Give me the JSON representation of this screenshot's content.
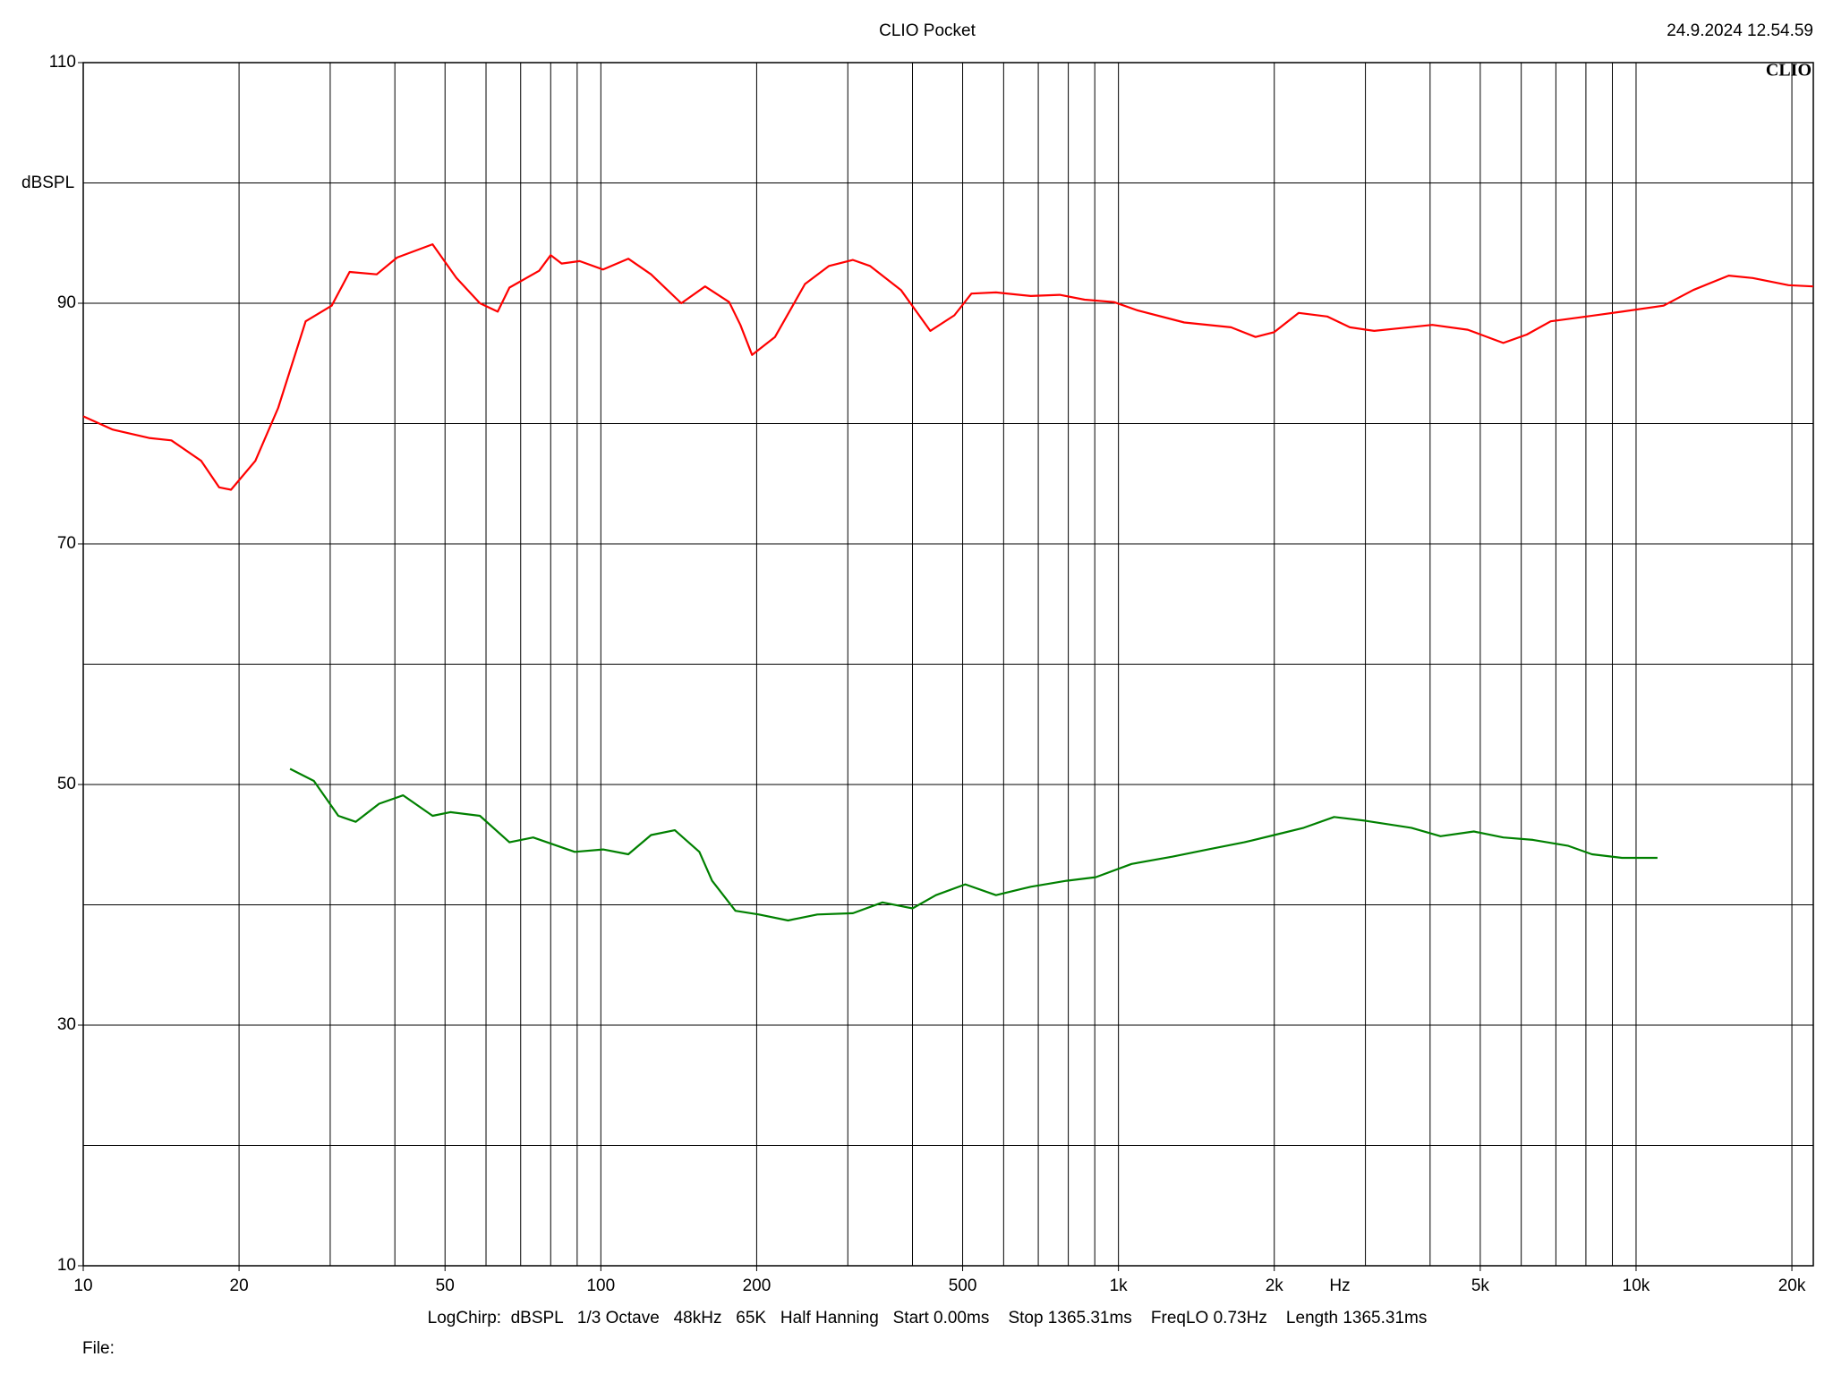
{
  "chart_data": {
    "type": "line",
    "title": "CLIO Pocket",
    "timestamp": "24.9.2024 12.54.59",
    "logo": "CLIO",
    "y_label": "dBSPL",
    "x_label": "Hz",
    "footer": "LogChirp:  dBSPL   1/3 Octave   48kHz   65K   Half Hanning   Start 0.00ms    Stop 1365.31ms    FreqLO 0.73Hz    Length 1365.31ms",
    "file_label": "File:",
    "x_log": true,
    "grid": true,
    "xlim": [
      10,
      22000
    ],
    "ylim": [
      10,
      110
    ],
    "xticks": [
      10,
      20,
      50,
      100,
      200,
      500,
      {
        "value": 1000,
        "label": "1k"
      },
      {
        "value": 2000,
        "label": "2k"
      },
      {
        "value": 5000,
        "label": "5k"
      },
      {
        "value": 10000,
        "label": "10k"
      },
      {
        "value": 20000,
        "label": "20k"
      }
    ],
    "xgrid": [
      20,
      30,
      40,
      50,
      60,
      70,
      80,
      90,
      100,
      200,
      300,
      400,
      500,
      600,
      700,
      800,
      900,
      1000,
      2000,
      3000,
      4000,
      5000,
      6000,
      7000,
      8000,
      9000,
      10000,
      20000
    ],
    "yticks": [
      10,
      30,
      50,
      70,
      90,
      110
    ],
    "ygrid": [
      20,
      30,
      40,
      50,
      60,
      70,
      80,
      90,
      100
    ],
    "series": [
      {
        "color": "#ff0000",
        "x": [
          10,
          11.4,
          13.4,
          14.8,
          16.9,
          18.3,
          19.3,
          21.5,
          23.8,
          26.9,
          30.2,
          32.7,
          36.9,
          40.4,
          47.3,
          52.6,
          58.4,
          63.2,
          66.6,
          76,
          80,
          84,
          91,
          101,
          113,
          125,
          143,
          159,
          177,
          186,
          196,
          217,
          248,
          276,
          307,
          331,
          380,
          433,
          482,
          520,
          580,
          677,
          770,
          860,
          980,
          1090,
          1340,
          1650,
          1840,
          2000,
          2230,
          2530,
          2800,
          3120,
          3460,
          4040,
          4730,
          5540,
          6150,
          6840,
          8020,
          9390,
          11300,
          12900,
          15100,
          16800,
          19700,
          22000
        ],
        "values": [
          80.6,
          79.5,
          78.8,
          78.6,
          76.9,
          74.7,
          74.5,
          76.9,
          81.3,
          88.5,
          89.8,
          92.6,
          92.4,
          93.8,
          94.9,
          92.1,
          90.0,
          89.3,
          91.3,
          92.7,
          94.0,
          93.3,
          93.5,
          92.8,
          93.7,
          92.4,
          90.0,
          91.4,
          90.1,
          88.2,
          85.7,
          87.2,
          91.6,
          93.1,
          93.6,
          93.1,
          91.1,
          87.7,
          89.0,
          90.8,
          90.9,
          90.6,
          90.7,
          90.3,
          90.1,
          89.4,
          88.4,
          88.0,
          87.2,
          87.6,
          89.2,
          88.9,
          88.0,
          87.7,
          87.9,
          88.2,
          87.8,
          86.7,
          87.4,
          88.5,
          88.9,
          89.3,
          89.8,
          91.1,
          92.3,
          92.1,
          91.5,
          91.4
        ]
      },
      {
        "color": "#008000",
        "x": [
          25.1,
          27.9,
          31.1,
          33.6,
          37.3,
          41.5,
          47.3,
          51.2,
          58.4,
          66.6,
          74,
          89,
          101,
          113,
          125,
          139,
          155,
          164,
          182,
          202,
          230,
          262,
          307,
          350,
          400,
          444,
          506,
          580,
          677,
          794,
          904,
          1060,
          1270,
          1490,
          1750,
          2000,
          2280,
          2610,
          2990,
          3680,
          4190,
          4860,
          5540,
          6320,
          7400,
          8220,
          9390,
          11000
        ],
        "values": [
          51.3,
          50.3,
          47.4,
          46.9,
          48.4,
          49.1,
          47.4,
          47.7,
          47.4,
          45.2,
          45.6,
          44.4,
          44.6,
          44.2,
          45.8,
          46.2,
          44.4,
          42.0,
          39.5,
          39.2,
          38.7,
          39.2,
          39.3,
          40.2,
          39.7,
          40.8,
          41.7,
          40.8,
          41.5,
          42.0,
          42.3,
          43.4,
          44.0,
          44.6,
          45.2,
          45.8,
          46.4,
          47.3,
          47.0,
          46.4,
          45.7,
          46.1,
          45.6,
          45.4,
          44.9,
          44.2,
          43.9,
          43.9
        ]
      }
    ]
  }
}
